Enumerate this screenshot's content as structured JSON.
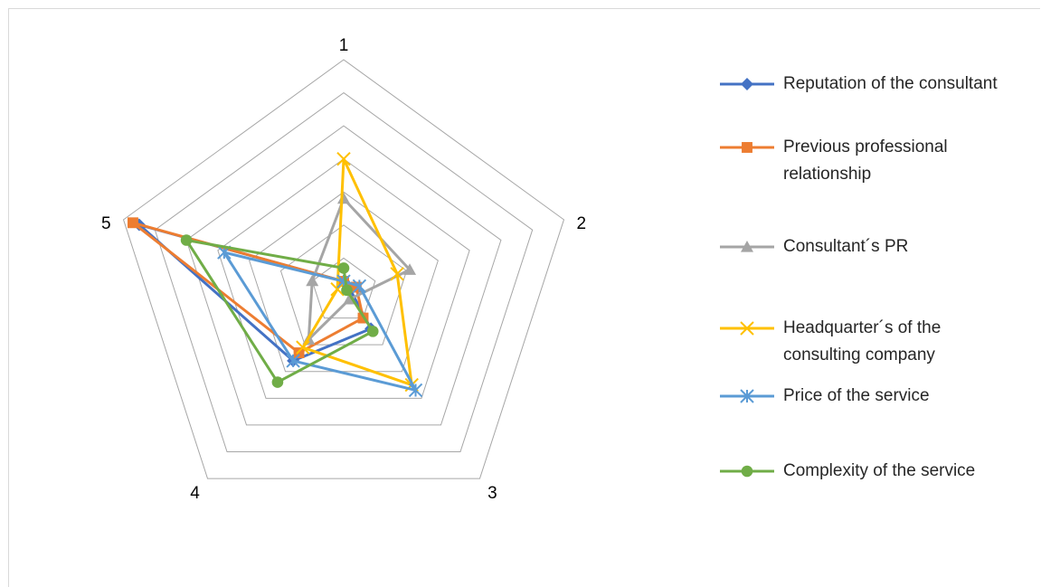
{
  "chart_data": {
    "type": "radar",
    "title": "",
    "axes": [
      "1",
      "2",
      "3",
      "4",
      "5"
    ],
    "scale": {
      "min": 0,
      "max": 7,
      "rings": 7
    },
    "grid": true,
    "legend_position": "right",
    "series": [
      {
        "name": "Reputation of the consultant",
        "values": [
          0.3,
          0.2,
          1.4,
          2.6,
          6.5
        ],
        "color": "#4472c4",
        "marker": "diamond"
      },
      {
        "name": "Previous professional relationship",
        "values": [
          0.3,
          0.4,
          1.0,
          2.3,
          6.7
        ],
        "color": "#ed7d31",
        "marker": "square"
      },
      {
        "name": "Consultant´s PR",
        "values": [
          2.8,
          2.1,
          0.3,
          1.8,
          1.0
        ],
        "color": "#a5a5a5",
        "marker": "triangle"
      },
      {
        "name": "Headquarter´s of the consulting company",
        "values": [
          4.0,
          1.7,
          3.5,
          2.1,
          0.2
        ],
        "color": "#ffc000",
        "marker": "x"
      },
      {
        "name": "Price of the service",
        "values": [
          0.3,
          0.5,
          3.7,
          2.6,
          3.8
        ],
        "color": "#5b9bd5",
        "marker": "star"
      },
      {
        "name": "Complexity of the service",
        "values": [
          0.7,
          0.1,
          1.5,
          3.4,
          5.0
        ],
        "color": "#70ad47",
        "marker": "circle"
      }
    ]
  }
}
